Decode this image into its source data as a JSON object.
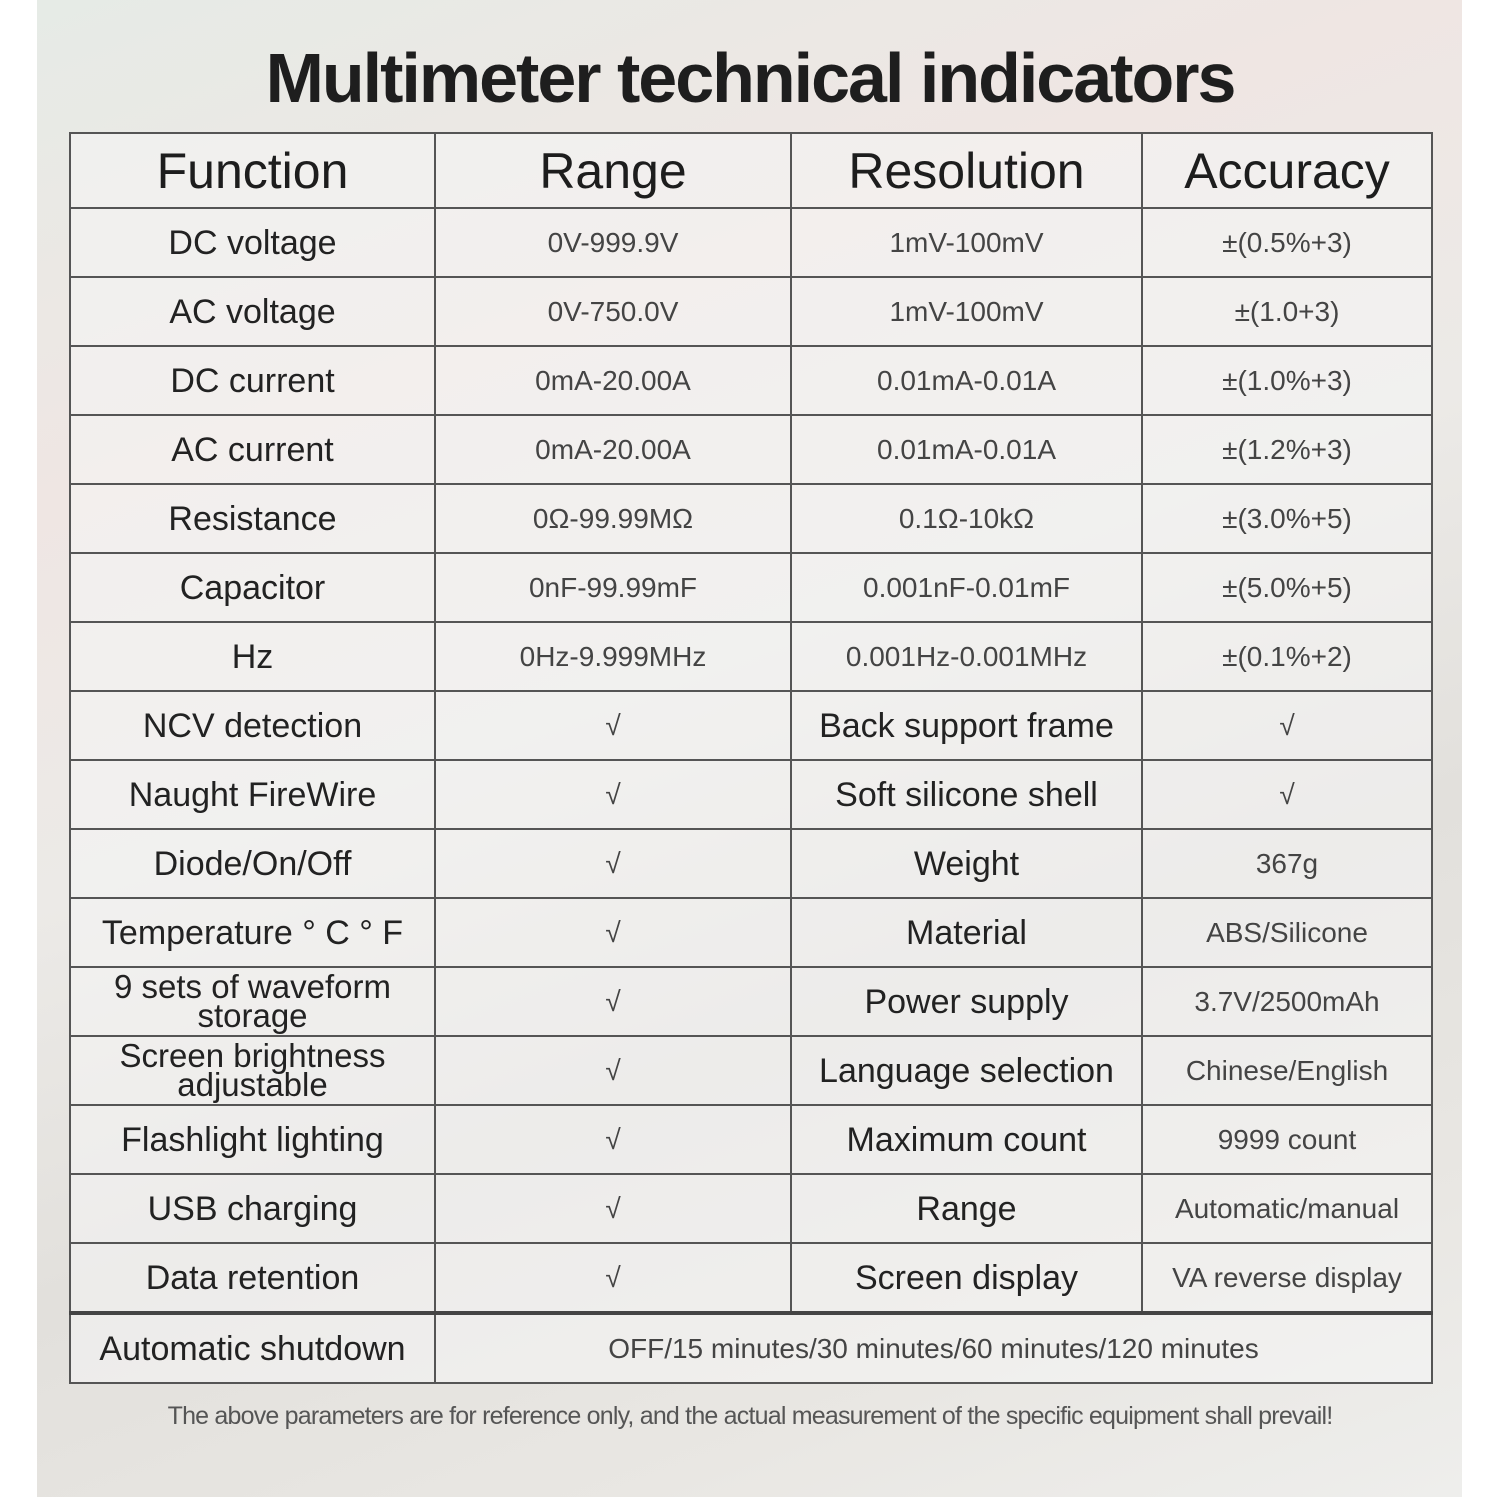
{
  "title": "Multimeter technical indicators",
  "headers": [
    "Function",
    "Range",
    "Resolution",
    "Accuracy"
  ],
  "rows": [
    [
      "DC voltage",
      "0V-999.9V",
      "1mV-100mV",
      "±(0.5%+3)"
    ],
    [
      "AC voltage",
      "0V-750.0V",
      "1mV-100mV",
      "±(1.0+3)"
    ],
    [
      "DC current",
      "0mA-20.00A",
      "0.01mA-0.01A",
      "±(1.0%+3)"
    ],
    [
      "AC current",
      "0mA-20.00A",
      "0.01mA-0.01A",
      "±(1.2%+3)"
    ],
    [
      "Resistance",
      "0Ω-99.99MΩ",
      "0.1Ω-10kΩ",
      "±(3.0%+5)"
    ],
    [
      "Capacitor",
      "0nF-99.99mF",
      "0.001nF-0.01mF",
      "±(5.0%+5)"
    ],
    [
      "Hz",
      "0Hz-9.999MHz",
      "0.001Hz-0.001MHz",
      "±(0.1%+2)"
    ]
  ],
  "features": [
    [
      "NCV detection",
      "√",
      "Back support frame",
      "√"
    ],
    [
      "Naught FireWire",
      "√",
      "Soft silicone shell",
      "√"
    ],
    [
      "Diode/On/Off",
      "√",
      "Weight",
      "367g"
    ],
    [
      "Temperature ° C ° F",
      "√",
      "Material",
      "ABS/Silicone"
    ],
    [
      "9 sets of waveform storage",
      "√",
      "Power supply",
      "3.7V/2500mAh"
    ],
    [
      "Screen brightness adjustable",
      "√",
      "Language selection",
      "Chinese/English"
    ],
    [
      "Flashlight lighting",
      "√",
      "Maximum count",
      "9999 count"
    ],
    [
      "USB charging",
      "√",
      "Range",
      "Automatic/manual"
    ],
    [
      "Data retention",
      "√",
      "Screen display",
      "VA reverse display"
    ]
  ],
  "shutdown": {
    "label": "Automatic shutdown",
    "value": "OFF/15 minutes/30 minutes/60 minutes/120 minutes"
  },
  "note": "The above parameters are for reference only, and the actual measurement of the specific equipment shall prevail!"
}
